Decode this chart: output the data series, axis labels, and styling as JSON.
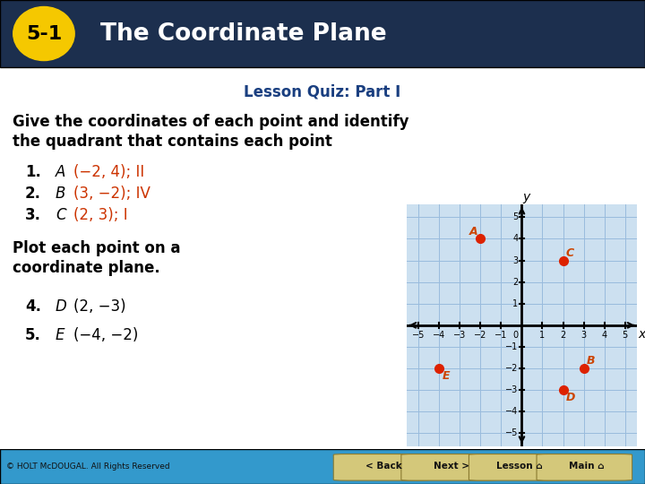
{
  "title_label": "5-1",
  "title_text": "The Coordinate Plane",
  "subtitle": "Lesson Quiz: Part I",
  "instruction_line1": "Give the coordinates of each point and identify",
  "instruction_line2": "the quadrant that contains each point",
  "items": [
    {
      "num": "1.",
      "letter": "A",
      "coords": "(−2, 4); II",
      "color": "#cc3300"
    },
    {
      "num": "2.",
      "letter": "B",
      "coords": "(3, −2); IV",
      "color": "#cc3300"
    },
    {
      "num": "3.",
      "letter": "C",
      "coords": "(2, 3); I",
      "color": "#cc3300"
    }
  ],
  "plot_instruction_line1": "Plot each point on a",
  "plot_instruction_line2": "coordinate plane.",
  "plot_items": [
    {
      "num": "4.",
      "letter": "D",
      "coords": "(2, −3)"
    },
    {
      "num": "5.",
      "letter": "E",
      "coords": "(−4, −2)"
    }
  ],
  "points": {
    "A": [
      -2,
      4
    ],
    "B": [
      3,
      -2
    ],
    "C": [
      2,
      3
    ],
    "D": [
      2,
      -3
    ],
    "E": [
      -4,
      -2
    ]
  },
  "point_color": "#dd2200",
  "point_label_color": "#cc4400",
  "header_bg": "#1c2f4e",
  "header_text_color": "#ffffff",
  "badge_bg": "#f5c800",
  "badge_text_color": "#000000",
  "subtitle_color": "#1a3f80",
  "grid_color": "#99bbdd",
  "grid_bg": "#cce0f0",
  "axis_color": "#000000",
  "bottom_bar_color": "#3399cc",
  "axis_range": [
    -5,
    5
  ],
  "copyright": "© HOLT McDOUGAL. All Rights Reserved"
}
